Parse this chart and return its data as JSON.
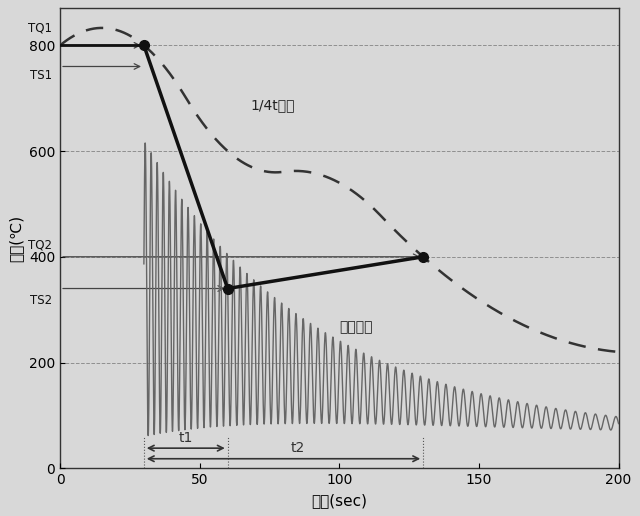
{
  "title": "",
  "xlabel": "時間(sec)",
  "ylabel": "温度(℃)",
  "xlim": [
    0,
    200
  ],
  "ylim": [
    0,
    870
  ],
  "yticks": [
    0,
    200,
    400,
    600,
    800
  ],
  "xticks": [
    0,
    50,
    100,
    150,
    200
  ],
  "TQ1": 800,
  "TQ2": 400,
  "TS1": 760,
  "TS2": 340,
  "t_start_quench": 30,
  "t_end_quench": 60,
  "t2_end": 130,
  "bg_color": "#d8d8d8",
  "line_dark": "#111111",
  "line_gray": "#666666",
  "grid_color": "#888888"
}
